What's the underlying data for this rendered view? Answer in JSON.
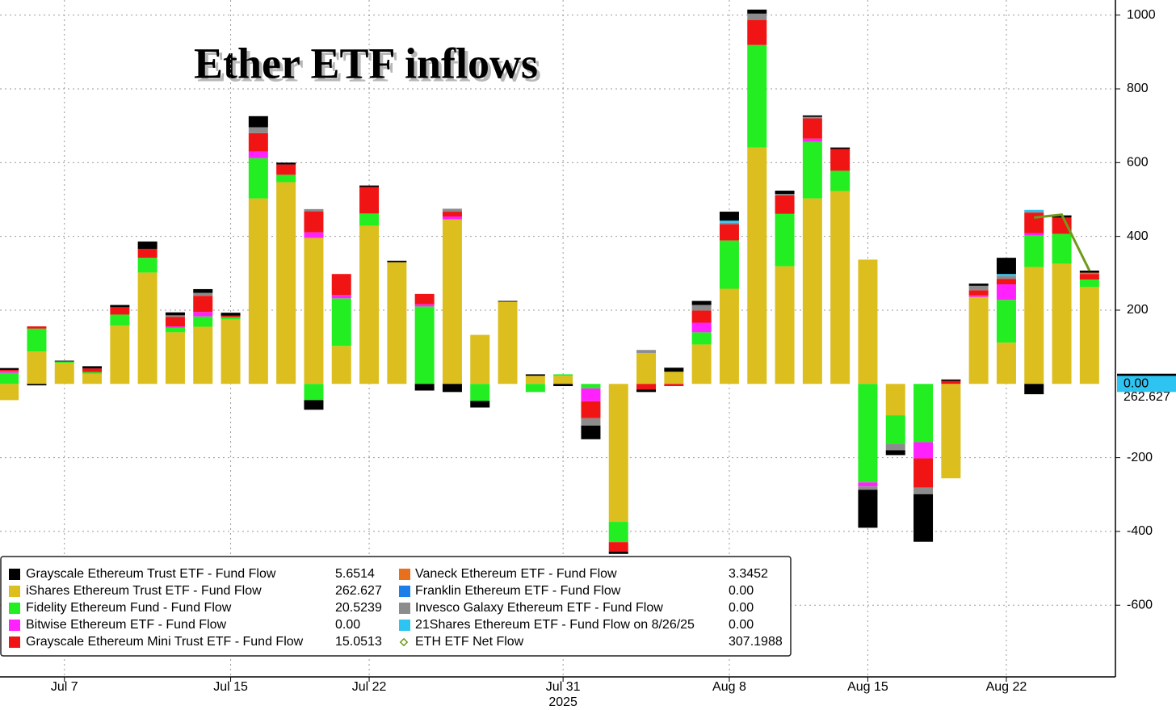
{
  "chart_data": {
    "type": "bar",
    "title": "Ether ETF inflows",
    "year_label": "2025",
    "categories": [
      null,
      null,
      "Jul 7",
      null,
      null,
      null,
      null,
      null,
      "Jul 15",
      null,
      null,
      null,
      null,
      "Jul 22",
      null,
      null,
      null,
      null,
      null,
      null,
      "Jul 31",
      null,
      null,
      null,
      null,
      null,
      "Aug 8",
      null,
      null,
      null,
      null,
      "Aug 15",
      null,
      null,
      null,
      null,
      "Aug 22",
      null,
      null,
      null
    ],
    "ylim": [
      -790,
      1030
    ],
    "yticks": [
      -600,
      -400,
      -200,
      200,
      400,
      600,
      800,
      1000
    ],
    "grid": true,
    "series": [
      {
        "name": "Grayscale Ethereum Trust ETF - Fund Flow",
        "color": "#000000",
        "values": [
          5,
          -4,
          2,
          6,
          6,
          20,
          8,
          10,
          8,
          30,
          5,
          -26,
          0,
          4,
          4,
          -18,
          -22,
          -18,
          2,
          4,
          -6,
          -37,
          -6,
          -7,
          11,
          11,
          24,
          11,
          9,
          4,
          4,
          -103,
          -13,
          -129,
          4,
          6,
          44,
          -28,
          6,
          5.6514
        ]
      },
      {
        "name": "iShares Ethereum Trust ETF - Fund Flow",
        "color": "#dcbf1e",
        "values": [
          -44,
          88,
          57,
          28,
          158,
          302,
          140,
          155,
          175,
          503,
          547,
          396,
          103,
          429,
          330,
          0,
          446,
          133,
          223,
          22,
          22,
          0,
          -374,
          84,
          33,
          107,
          258,
          641,
          319,
          503,
          523,
          337,
          -85,
          0,
          -256,
          236,
          112,
          317,
          326,
          262.627
        ]
      },
      {
        "name": "Fidelity Ethereum Fund - Fund Flow",
        "color": "#22ee22",
        "values": [
          30,
          62,
          4,
          4,
          30,
          40,
          12,
          28,
          6,
          109,
          20,
          -44,
          129,
          33,
          0,
          210,
          0,
          -46,
          0,
          -22,
          4,
          -12,
          -55,
          0,
          0,
          33,
          131,
          278,
          142,
          153,
          55,
          -267,
          -77,
          -158,
          0,
          0,
          116,
          85,
          81,
          20.5239
        ]
      },
      {
        "name": "Bitwise Ethereum ETF - Fund Flow",
        "color": "#ff22ff",
        "values": [
          5,
          0,
          0,
          0,
          0,
          0,
          4,
          12,
          0,
          18,
          0,
          15,
          9,
          0,
          0,
          6,
          8,
          0,
          0,
          0,
          0,
          -35,
          0,
          0,
          0,
          26,
          0,
          0,
          0,
          9,
          0,
          -11,
          0,
          -44,
          0,
          4,
          42,
          7,
          0,
          0
        ],
        "value_labels": [
          null,
          null,
          null,
          null,
          null,
          null,
          null,
          null,
          null,
          null,
          null,
          null,
          null,
          null,
          null,
          null,
          null,
          null,
          null,
          null,
          null,
          null,
          null,
          null,
          null,
          null,
          null,
          null,
          null,
          null,
          null,
          null,
          null,
          null,
          null,
          null,
          null,
          null,
          null,
          "0.00"
        ]
      },
      {
        "name": "Grayscale Ethereum Mini Trust ETF - Fund Flow",
        "color": "#f01414",
        "values": [
          3,
          6,
          0,
          10,
          20,
          24,
          26,
          44,
          4,
          50,
          28,
          57,
          57,
          72,
          0,
          28,
          13,
          0,
          0,
          0,
          0,
          -46,
          -26,
          -15,
          -6,
          33,
          44,
          68,
          50,
          55,
          59,
          0,
          0,
          -79,
          8,
          14,
          15,
          55,
          44,
          15.0513
        ]
      },
      {
        "name": "Vaneck Ethereum ETF - Fund Flow",
        "color": "#e8701c",
        "values": [
          0,
          0,
          0,
          0,
          0,
          0,
          0,
          0,
          0,
          0,
          0,
          0,
          0,
          0,
          0,
          0,
          0,
          0,
          0,
          0,
          0,
          0,
          0,
          0,
          0,
          0,
          0,
          0,
          0,
          0,
          0,
          0,
          0,
          0,
          0,
          0,
          0,
          0,
          0,
          3.3452
        ]
      },
      {
        "name": "Franklin Ethereum ETF - Fund Flow",
        "color": "#1c7ee8",
        "values": [
          0,
          0,
          0,
          0,
          0,
          0,
          0,
          0,
          0,
          0,
          0,
          0,
          0,
          0,
          0,
          0,
          0,
          0,
          0,
          0,
          0,
          0,
          0,
          0,
          0,
          0,
          0,
          0,
          0,
          0,
          0,
          0,
          0,
          0,
          0,
          0,
          0,
          0,
          0,
          0
        ],
        "value_labels": [
          null,
          null,
          null,
          null,
          null,
          null,
          null,
          null,
          null,
          null,
          null,
          null,
          null,
          null,
          null,
          null,
          null,
          null,
          null,
          null,
          null,
          null,
          null,
          null,
          null,
          null,
          null,
          null,
          null,
          null,
          null,
          null,
          null,
          null,
          null,
          null,
          null,
          null,
          null,
          "0.00"
        ]
      },
      {
        "name": "Invesco Galaxy Ethereum ETF - Fund Flow",
        "color": "#8c8c8c",
        "values": [
          0,
          0,
          0,
          0,
          0,
          0,
          4,
          8,
          0,
          16,
          0,
          6,
          0,
          0,
          0,
          0,
          8,
          0,
          0,
          0,
          0,
          -20,
          0,
          8,
          0,
          15,
          4,
          17,
          4,
          4,
          0,
          -9,
          -18,
          -18,
          0,
          12,
          7,
          4,
          0,
          0
        ],
        "value_labels": [
          null,
          null,
          null,
          null,
          null,
          null,
          null,
          null,
          null,
          null,
          null,
          null,
          null,
          null,
          null,
          null,
          null,
          null,
          null,
          null,
          null,
          null,
          null,
          null,
          null,
          null,
          null,
          null,
          null,
          null,
          null,
          null,
          null,
          null,
          null,
          null,
          null,
          null,
          null,
          "0.00"
        ]
      },
      {
        "name": "21Shares Ethereum ETF - Fund Flow on 8/26/25",
        "color": "#2ec4f2",
        "values": [
          0,
          0,
          0,
          0,
          0,
          0,
          0,
          0,
          0,
          0,
          0,
          0,
          0,
          0,
          0,
          0,
          0,
          0,
          0,
          0,
          0,
          0,
          0,
          0,
          0,
          0,
          6,
          0,
          0,
          0,
          0,
          0,
          0,
          0,
          0,
          0,
          6,
          4,
          0,
          0
        ],
        "value_labels": [
          null,
          null,
          null,
          null,
          null,
          null,
          null,
          null,
          null,
          null,
          null,
          null,
          null,
          null,
          null,
          null,
          null,
          null,
          null,
          null,
          null,
          null,
          null,
          null,
          null,
          null,
          null,
          null,
          null,
          null,
          null,
          null,
          null,
          null,
          null,
          null,
          null,
          null,
          null,
          "0.00"
        ]
      },
      {
        "name": "ETH ETF Net Flow",
        "color": "#6f9a1c",
        "kind": "line",
        "values": [
          null,
          null,
          null,
          null,
          null,
          null,
          null,
          null,
          null,
          null,
          null,
          null,
          null,
          null,
          null,
          null,
          null,
          null,
          null,
          null,
          null,
          null,
          null,
          null,
          null,
          null,
          null,
          null,
          null,
          null,
          null,
          null,
          null,
          null,
          null,
          null,
          null,
          451,
          459,
          307.1988
        ]
      }
    ]
  }
}
